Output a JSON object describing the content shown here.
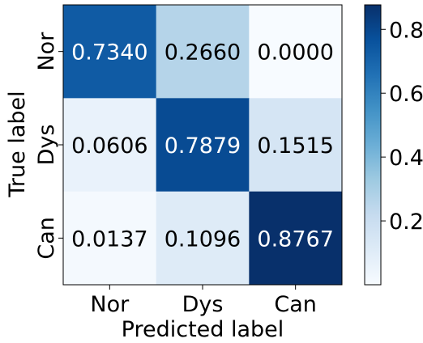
{
  "chart_data": {
    "type": "heatmap",
    "title": "",
    "xlabel": "Predicted label",
    "ylabel": "True label",
    "x_categories": [
      "Nor",
      "Dys",
      "Can"
    ],
    "y_categories": [
      "Nor",
      "Dys",
      "Can"
    ],
    "values": [
      [
        0.734,
        0.266,
        0.0
      ],
      [
        0.0606,
        0.7879,
        0.1515
      ],
      [
        0.0137,
        0.1096,
        0.8767
      ]
    ],
    "cell_labels": [
      [
        "0.7340",
        "0.2660",
        "0.0000"
      ],
      [
        "0.0606",
        "0.7879",
        "0.1515"
      ],
      [
        "0.0137",
        "0.1096",
        "0.8767"
      ]
    ],
    "colormap": "Blues",
    "color_range": [
      0,
      0.8767
    ],
    "colorbar": {
      "ticks": [
        0.2,
        0.4,
        0.6,
        0.8
      ],
      "tick_labels": [
        "0.2",
        "0.4",
        "0.6",
        "0.8"
      ]
    },
    "grid": false
  }
}
